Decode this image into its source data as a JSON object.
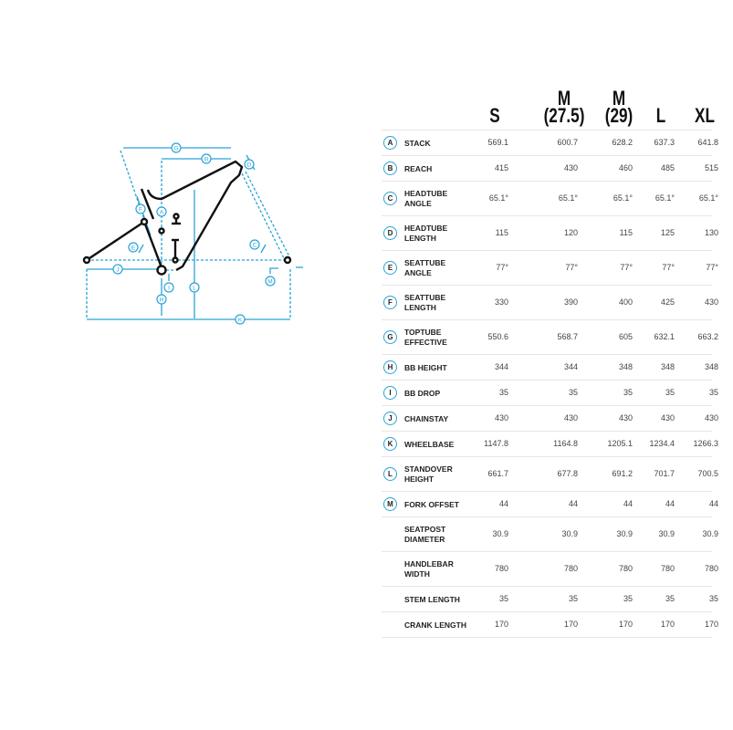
{
  "colors": {
    "accent": "#2aa3d6",
    "frame": "#111111"
  },
  "diagram": {
    "labels": [
      "A",
      "B",
      "C",
      "D",
      "E",
      "F",
      "G",
      "H",
      "I",
      "J",
      "K",
      "L",
      "M"
    ]
  },
  "table": {
    "columns": [
      {
        "top": "",
        "bottom": "S"
      },
      {
        "top": "M",
        "bottom": "(27.5)"
      },
      {
        "top": "M",
        "bottom": "(29)"
      },
      {
        "top": "",
        "bottom": "L"
      },
      {
        "top": "",
        "bottom": "XL"
      }
    ],
    "rows": [
      {
        "badge": "A",
        "label": "STACK",
        "values": [
          "569.1",
          "600.7",
          "628.2",
          "637.3",
          "641.8"
        ]
      },
      {
        "badge": "B",
        "label": "REACH",
        "values": [
          "415",
          "430",
          "460",
          "485",
          "515"
        ]
      },
      {
        "badge": "C",
        "label": "HEADTUBE ANGLE",
        "values": [
          "65.1°",
          "65.1°",
          "65.1°",
          "65.1°",
          "65.1°"
        ]
      },
      {
        "badge": "D",
        "label": "HEADTUBE LENGTH",
        "values": [
          "115",
          "120",
          "115",
          "125",
          "130"
        ]
      },
      {
        "badge": "E",
        "label": "SEATTUBE ANGLE",
        "values": [
          "77°",
          "77°",
          "77°",
          "77°",
          "77°"
        ]
      },
      {
        "badge": "F",
        "label": "SEATTUBE LENGTH",
        "values": [
          "330",
          "390",
          "400",
          "425",
          "430"
        ]
      },
      {
        "badge": "G",
        "label": "TOPTUBE EFFECTIVE",
        "values": [
          "550.6",
          "568.7",
          "605",
          "632.1",
          "663.2"
        ]
      },
      {
        "badge": "H",
        "label": "BB HEIGHT",
        "values": [
          "344",
          "344",
          "348",
          "348",
          "348"
        ]
      },
      {
        "badge": "I",
        "label": "BB DROP",
        "values": [
          "35",
          "35",
          "35",
          "35",
          "35"
        ]
      },
      {
        "badge": "J",
        "label": "CHAINSTAY",
        "values": [
          "430",
          "430",
          "430",
          "430",
          "430"
        ]
      },
      {
        "badge": "K",
        "label": "WHEELBASE",
        "values": [
          "1147.8",
          "1164.8",
          "1205.1",
          "1234.4",
          "1266.3"
        ]
      },
      {
        "badge": "L",
        "label": "STANDOVER HEIGHT",
        "values": [
          "661.7",
          "677.8",
          "691.2",
          "701.7",
          "700.5"
        ]
      },
      {
        "badge": "M",
        "label": "FORK OFFSET",
        "values": [
          "44",
          "44",
          "44",
          "44",
          "44"
        ]
      },
      {
        "badge": "",
        "label": "SEATPOST DIAMETER",
        "values": [
          "30.9",
          "30.9",
          "30.9",
          "30.9",
          "30.9"
        ]
      },
      {
        "badge": "",
        "label": "HANDLEBAR WIDTH",
        "values": [
          "780",
          "780",
          "780",
          "780",
          "780"
        ]
      },
      {
        "badge": "",
        "label": "STEM LENGTH",
        "values": [
          "35",
          "35",
          "35",
          "35",
          "35"
        ]
      },
      {
        "badge": "",
        "label": "CRANK LENGTH",
        "values": [
          "170",
          "170",
          "170",
          "170",
          "170"
        ]
      }
    ]
  }
}
